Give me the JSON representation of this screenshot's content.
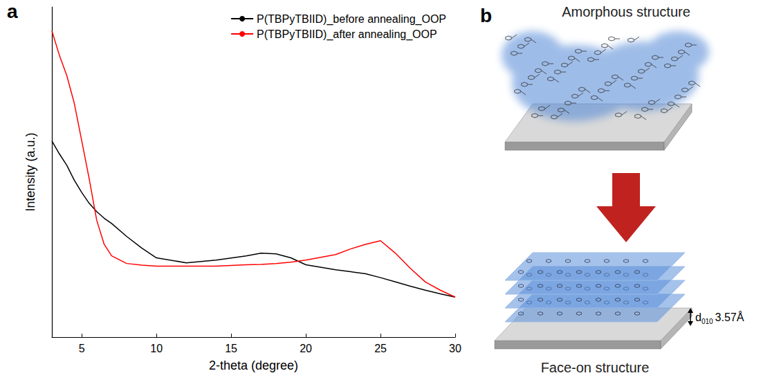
{
  "chart_data": {
    "type": "line",
    "x_label": "2-theta (degree)",
    "y_label": "Intensity (a.u.)",
    "x": [
      3,
      3.5,
      4,
      4.5,
      5,
      5.5,
      6,
      6.5,
      7,
      8,
      9,
      10,
      12,
      14,
      16,
      17,
      18,
      19,
      20,
      22,
      23,
      24,
      25,
      26,
      27,
      28,
      29,
      30
    ],
    "series": [
      {
        "name": "P(TBPyTBIID)_before annealing_OOP",
        "color": "#000000",
        "values": [
          59.4,
          55.5,
          52,
          47.5,
          43.8,
          40.5,
          38,
          36,
          34.4,
          30.5,
          27,
          24,
          22.5,
          23.3,
          24.6,
          25.4,
          25.2,
          24,
          21.9,
          20.4,
          19.8,
          19.2,
          18,
          16.7,
          15.4,
          14.2,
          13.1,
          12.1
        ]
      },
      {
        "name": "P(TBPyTBIID)_after annealing_OOP",
        "color": "#ff0000",
        "values": [
          92.7,
          85.4,
          79.2,
          70.8,
          59.4,
          47.9,
          35.4,
          28.1,
          24.6,
          22.3,
          21.8,
          21.5,
          21.5,
          21.5,
          21.9,
          22,
          22.3,
          22.7,
          23.3,
          25,
          26.7,
          28.1,
          29.2,
          25.4,
          20.8,
          16.7,
          14.2,
          12.1
        ]
      }
    ],
    "xlim": [
      3,
      30
    ],
    "xticks": [
      5,
      10,
      15,
      20,
      25,
      30
    ],
    "ylim": [
      0,
      100
    ],
    "tick_labels": "x",
    "grid": false,
    "legend": "upper right",
    "marker": "none",
    "line_style": "solid"
  },
  "panel_label": "a",
  "diagram": {
    "panel_label": "b",
    "top_caption": "Amorphous structure",
    "bottom_caption": "Face-on structure",
    "spacing": {
      "symbol": "d",
      "subscript": "010",
      "value": "3.57Å"
    }
  }
}
